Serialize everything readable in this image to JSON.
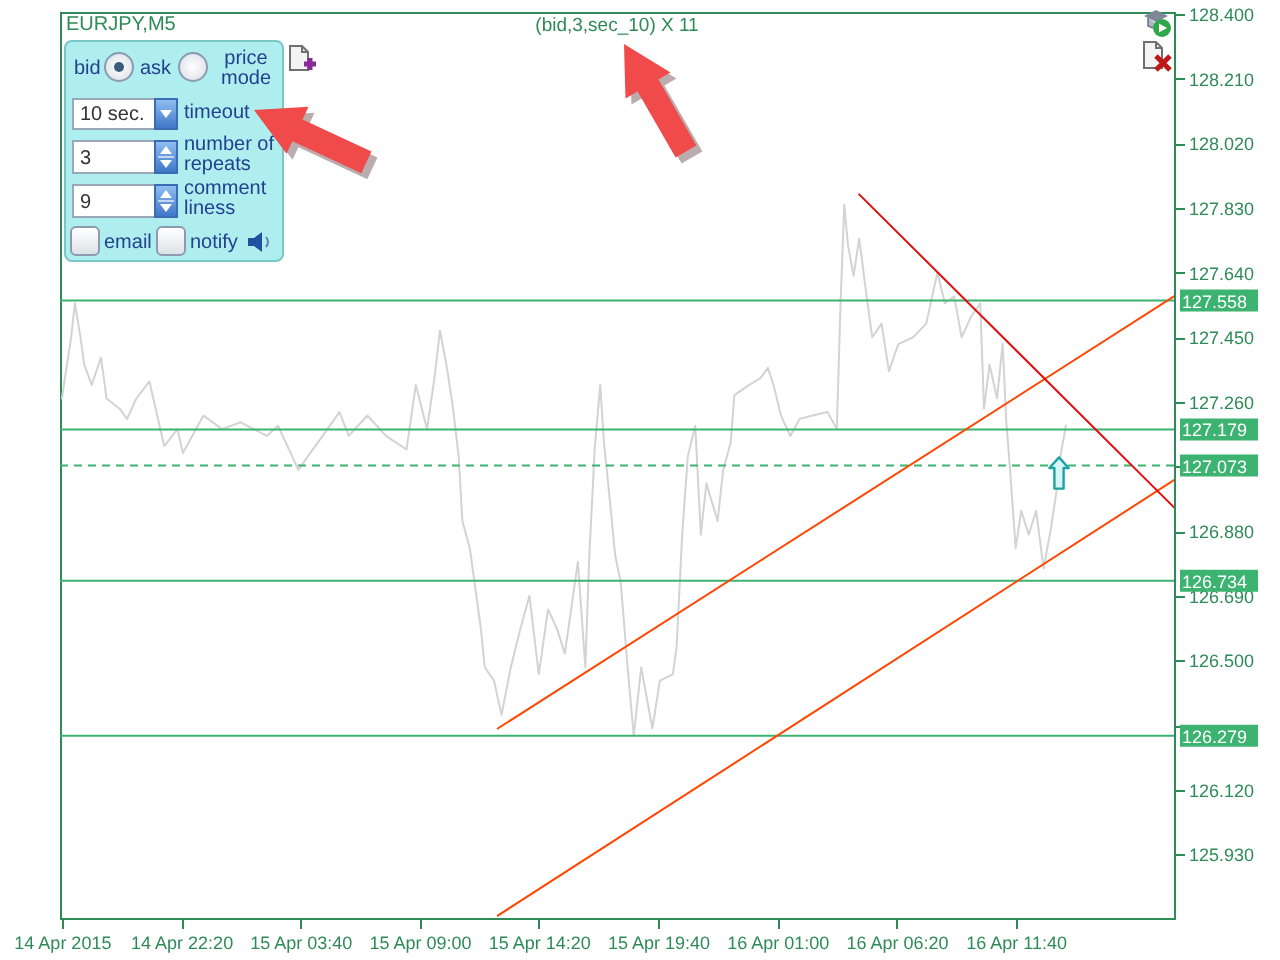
{
  "chart_data": {
    "type": "line",
    "title": "(bid,3,sec_10) X 11",
    "annotations": [
      "EURJPY,M5",
      "bid",
      "ask",
      "price mode",
      "10 sec.",
      "timeout",
      "3",
      "number of repeats",
      "9",
      "comment liness",
      "email",
      "notify"
    ],
    "x": [
      "2015-04-14T17:00",
      "2015-04-14T17:25",
      "2015-04-14T17:35",
      "2015-04-14T17:50",
      "2015-04-14T18:00",
      "2015-04-14T18:20",
      "2015-04-14T18:45",
      "2015-04-14T19:00",
      "2015-04-14T19:35",
      "2015-04-14T19:55",
      "2015-04-14T20:20",
      "2015-04-14T20:55",
      "2015-04-14T21:20",
      "2015-04-14T21:35",
      "2015-04-14T22:10",
      "2015-04-14T22:25",
      "2015-04-14T23:20",
      "2015-04-15T00:10",
      "2015-04-15T01:00",
      "2015-04-15T02:10",
      "2015-04-15T02:40",
      "2015-04-15T03:35",
      "2015-04-15T04:00",
      "2015-04-15T04:40",
      "2015-04-15T05:25",
      "2015-04-15T05:50",
      "2015-04-15T06:40",
      "2015-04-15T07:30",
      "2015-04-15T08:25",
      "2015-04-15T08:50",
      "2015-04-15T09:20",
      "2015-04-15T09:40",
      "2015-04-15T09:55",
      "2015-04-15T10:15",
      "2015-04-15T10:30",
      "2015-04-15T10:45",
      "2015-04-15T10:55",
      "2015-04-15T11:15",
      "2015-04-15T11:30",
      "2015-04-15T11:45",
      "2015-04-15T11:55",
      "2015-04-15T12:20",
      "2015-04-15T12:40",
      "2015-04-15T13:05",
      "2015-04-15T13:30",
      "2015-04-15T13:55",
      "2015-04-15T14:20",
      "2015-04-15T14:45",
      "2015-04-15T15:10",
      "2015-04-15T15:30",
      "2015-04-15T16:05",
      "2015-04-15T16:25",
      "2015-04-15T16:35",
      "2015-04-15T16:50",
      "2015-04-15T17:05",
      "2015-04-15T17:15",
      "2015-04-15T17:30",
      "2015-04-15T17:45",
      "2015-04-15T18:00",
      "2015-04-15T18:20",
      "2015-04-15T18:35",
      "2015-04-15T18:55",
      "2015-04-15T19:25",
      "2015-04-15T19:45",
      "2015-04-15T20:20",
      "2015-04-15T20:30",
      "2015-04-15T20:45",
      "2015-04-15T21:00",
      "2015-04-15T21:20",
      "2015-04-15T21:35",
      "2015-04-15T21:50",
      "2015-04-15T22:20",
      "2015-04-15T22:35",
      "2015-04-15T22:55",
      "2015-04-15T23:05",
      "2015-04-15T23:45",
      "2015-04-16T00:15",
      "2015-04-16T00:35",
      "2015-04-16T00:50",
      "2015-04-16T01:10",
      "2015-04-16T01:35",
      "2015-04-16T02:00",
      "2015-04-16T02:35",
      "2015-04-16T03:15",
      "2015-04-16T03:40",
      "2015-04-16T03:50",
      "2015-04-16T04:00",
      "2015-04-16T04:10",
      "2015-04-16T04:25",
      "2015-04-16T04:40",
      "2015-04-16T05:00",
      "2015-04-16T05:15",
      "2015-04-16T05:40",
      "2015-04-16T06:00",
      "2015-04-16T06:25",
      "2015-04-16T07:05",
      "2015-04-16T07:40",
      "2015-04-16T08:10",
      "2015-04-16T08:30",
      "2015-04-16T08:55",
      "2015-04-16T09:15",
      "2015-04-16T09:40",
      "2015-04-16T10:05",
      "2015-04-16T10:15",
      "2015-04-16T10:30",
      "2015-04-16T10:50",
      "2015-04-16T11:05",
      "2015-04-16T11:15",
      "2015-04-16T11:25",
      "2015-04-16T11:40",
      "2015-04-16T11:55",
      "2015-04-16T12:15",
      "2015-04-16T12:35",
      "2015-04-16T12:55",
      "2015-04-16T13:15",
      "2015-04-16T13:30",
      "2015-04-16T13:40",
      "2015-04-16T13:55"
    ],
    "series": [
      {
        "color": "#d3d3d3",
        "values": [
          127.27,
          127.45,
          127.55,
          127.45,
          127.37,
          127.31,
          127.39,
          127.27,
          127.24,
          127.21,
          127.27,
          127.32,
          127.2,
          127.13,
          127.18,
          127.11,
          127.22,
          127.18,
          127.2,
          127.16,
          127.19,
          127.06,
          127.1,
          127.16,
          127.23,
          127.16,
          127.22,
          127.16,
          127.12,
          127.31,
          127.18,
          127.33,
          127.47,
          127.35,
          127.24,
          127.1,
          126.91,
          126.83,
          126.71,
          126.59,
          126.48,
          126.44,
          126.34,
          126.48,
          126.59,
          126.69,
          126.46,
          126.65,
          126.59,
          126.52,
          126.79,
          126.48,
          126.79,
          127.12,
          127.31,
          127.14,
          126.98,
          126.81,
          126.73,
          126.46,
          126.28,
          126.48,
          126.3,
          126.44,
          126.46,
          126.54,
          126.87,
          127.1,
          127.19,
          126.87,
          127.02,
          126.91,
          127.06,
          127.14,
          127.28,
          127.31,
          127.33,
          127.36,
          127.31,
          127.22,
          127.16,
          127.21,
          127.22,
          127.23,
          127.18,
          127.55,
          127.84,
          127.72,
          127.63,
          127.74,
          127.57,
          127.45,
          127.49,
          127.35,
          127.43,
          127.45,
          127.49,
          127.64,
          127.55,
          127.57,
          127.45,
          127.51,
          127.55,
          127.24,
          127.37,
          127.27,
          127.43,
          127.2,
          127.06,
          126.83,
          126.94,
          126.87,
          126.94,
          126.77,
          126.89,
          127.0,
          127.1,
          127.19
        ]
      },
      {
        "type": "line",
        "color": "#ff4500",
        "x": [
          "2015-04-15T12:30",
          "2015-04-16T18:45"
        ],
        "values": [
          126.3,
          127.57
        ]
      },
      {
        "type": "line",
        "color": "#ff4500",
        "x": [
          "2015-04-15T12:30",
          "2015-04-16T18:45"
        ],
        "values": [
          125.75,
          127.03
        ]
      },
      {
        "type": "line",
        "color": "#e01010",
        "x": [
          "2015-04-16T04:40",
          "2015-04-16T18:45"
        ],
        "values": [
          127.87,
          126.95
        ]
      }
    ],
    "xlim": [
      "2015-04-14T16:55",
      "2015-04-16T18:45"
    ],
    "xticks": [
      {
        "value": "2015-04-14T17:00",
        "label": "14 Apr 2015"
      },
      {
        "value": "2015-04-14T22:20",
        "label": "14 Apr 22:20"
      },
      {
        "value": "2015-04-15T03:40",
        "label": "15 Apr 03:40"
      },
      {
        "value": "2015-04-15T09:00",
        "label": "15 Apr 09:00"
      },
      {
        "value": "2015-04-15T14:20",
        "label": "15 Apr 14:20"
      },
      {
        "value": "2015-04-15T19:40",
        "label": "15 Apr 19:40"
      },
      {
        "value": "2015-04-16T01:00",
        "label": "16 Apr 01:00"
      },
      {
        "value": "2015-04-16T06:20",
        "label": "16 Apr 06:20"
      },
      {
        "value": "2015-04-16T11:40",
        "label": "16 Apr 11:40"
      }
    ],
    "ylim": [
      125.743,
      128.406
    ],
    "yticks": [
      {
        "value": 125.93,
        "label": "125.930"
      },
      {
        "value": 126.12,
        "label": "126.120"
      },
      {
        "value": 126.31,
        "label": null
      },
      {
        "value": 126.5,
        "label": "126.500"
      },
      {
        "value": 126.69,
        "label": "126.690"
      },
      {
        "value": 126.88,
        "label": "126.880"
      },
      {
        "value": 127.07,
        "label": null
      },
      {
        "value": 127.26,
        "label": "127.260"
      },
      {
        "value": 127.45,
        "label": "127.450"
      },
      {
        "value": 127.64,
        "label": "127.640"
      },
      {
        "value": 127.83,
        "label": "127.830"
      },
      {
        "value": 128.02,
        "label": "128.020"
      },
      {
        "value": 128.21,
        "label": "128.210"
      },
      {
        "value": 128.4,
        "label": "128.400"
      }
    ],
    "ref_lines": [
      {
        "axis": "y",
        "value": 127.558,
        "label": "127.558",
        "color": "#3cb371"
      },
      {
        "axis": "y",
        "value": 127.179,
        "label": "127.179",
        "color": "#3cb371"
      },
      {
        "axis": "y",
        "value": 127.073,
        "label": "127.073",
        "color": "#3cb371",
        "line_style": "dashed"
      },
      {
        "axis": "y",
        "value": 126.734,
        "label": "126.734",
        "color": "#3cb371"
      },
      {
        "axis": "y",
        "value": 126.279,
        "label": "126.279",
        "color": "#3cb371"
      }
    ]
  }
}
